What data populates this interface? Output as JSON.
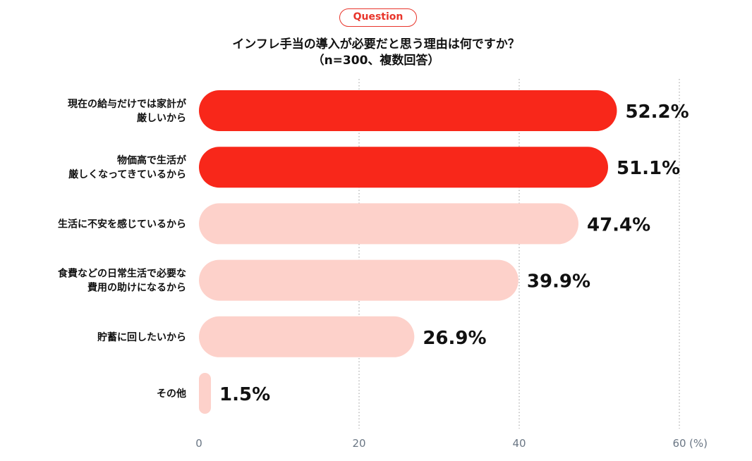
{
  "badge": "Question",
  "title_line1": "インフレ手当の導入が必要だと思う理由は何ですか？",
  "title_line2": "（n=300、複数回答）",
  "colors": {
    "highlight": "#f8271a",
    "normal": "#fdd1ca",
    "grid": "#999999",
    "tick": "#6b7785"
  },
  "chart_data": {
    "type": "bar",
    "orientation": "horizontal",
    "categories": [
      [
        "現在の給与だけでは家計が",
        "厳しいから"
      ],
      [
        "物価高で生活が",
        "厳しくなってきているから"
      ],
      [
        "生活に不安を感じているから"
      ],
      [
        "食費などの日常生活で必要な",
        "費用の助けになるから"
      ],
      [
        "貯蓄に回したいから"
      ],
      [
        "その他"
      ]
    ],
    "values": [
      52.2,
      51.1,
      47.4,
      39.9,
      26.9,
      1.5
    ],
    "value_labels": [
      "52.2%",
      "51.1%",
      "47.4%",
      "39.9%",
      "26.9%",
      "1.5%"
    ],
    "highlighted": [
      true,
      true,
      false,
      false,
      false,
      false
    ],
    "xlim": [
      0,
      60
    ],
    "xticks": [
      0,
      20,
      40,
      60
    ],
    "xunit": "(%)",
    "grid": "vertical dotted"
  }
}
